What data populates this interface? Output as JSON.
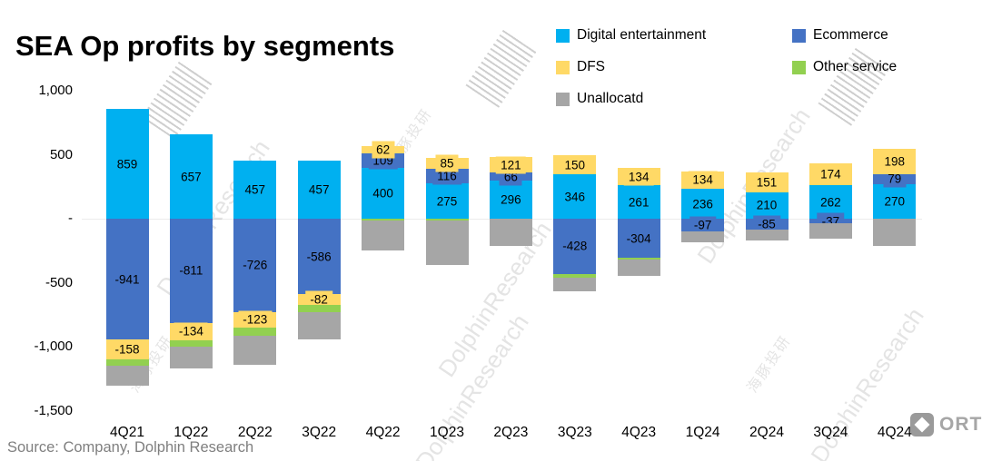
{
  "source_note": "Source: Company, Dolphin Research",
  "watermark": {
    "en": "DolphinResearch",
    "cn": "海豚投研"
  },
  "logo": {
    "text": "ORT"
  },
  "chart_data": {
    "type": "bar",
    "subtype": "stacked",
    "title": "SEA Op profits by segments",
    "xlabel": "",
    "ylabel": "",
    "ylim": [
      -1500,
      1000
    ],
    "grid": false,
    "legend_position": "top-right",
    "categories": [
      "4Q21",
      "1Q22",
      "2Q22",
      "3Q22",
      "4Q22",
      "1Q23",
      "2Q23",
      "3Q23",
      "4Q23",
      "1Q24",
      "2Q24",
      "3Q24",
      "4Q24"
    ],
    "series": [
      {
        "name": "Digital entertainment",
        "color": "#00B0F0",
        "show_labels": true,
        "values": [
          859,
          657,
          457,
          457,
          400,
          275,
          296,
          346,
          261,
          236,
          210,
          262,
          270
        ]
      },
      {
        "name": "Ecommerce",
        "color": "#4472C4",
        "show_labels": true,
        "values": [
          -941,
          -811,
          -726,
          -586,
          109,
          116,
          66,
          -428,
          -304,
          -97,
          -85,
          -37,
          79
        ]
      },
      {
        "name": "DFS",
        "color": "#FFD966",
        "show_labels": true,
        "values": [
          -158,
          -134,
          -123,
          -82,
          62,
          85,
          121,
          150,
          134,
          134,
          151,
          174,
          198
        ]
      },
      {
        "name": "Other service",
        "color": "#92D050",
        "show_labels": false,
        "estimated": true,
        "values": [
          -50,
          -50,
          -60,
          -60,
          -15,
          -10,
          0,
          -30,
          -10,
          0,
          0,
          0,
          0
        ]
      },
      {
        "name": "Unallocatd",
        "color": "#A6A6A6",
        "show_labels": false,
        "estimated": true,
        "values": [
          -155,
          -175,
          -230,
          -210,
          -230,
          -350,
          -210,
          -105,
          -130,
          -86,
          -84,
          -118,
          -210
        ]
      }
    ],
    "y_ticks": {
      "labels": [
        "1,000",
        "500",
        "-",
        "-500",
        "-1,000",
        "-1,500"
      ],
      "values": [
        1000,
        500,
        0,
        -500,
        -1000,
        -1500
      ]
    }
  }
}
